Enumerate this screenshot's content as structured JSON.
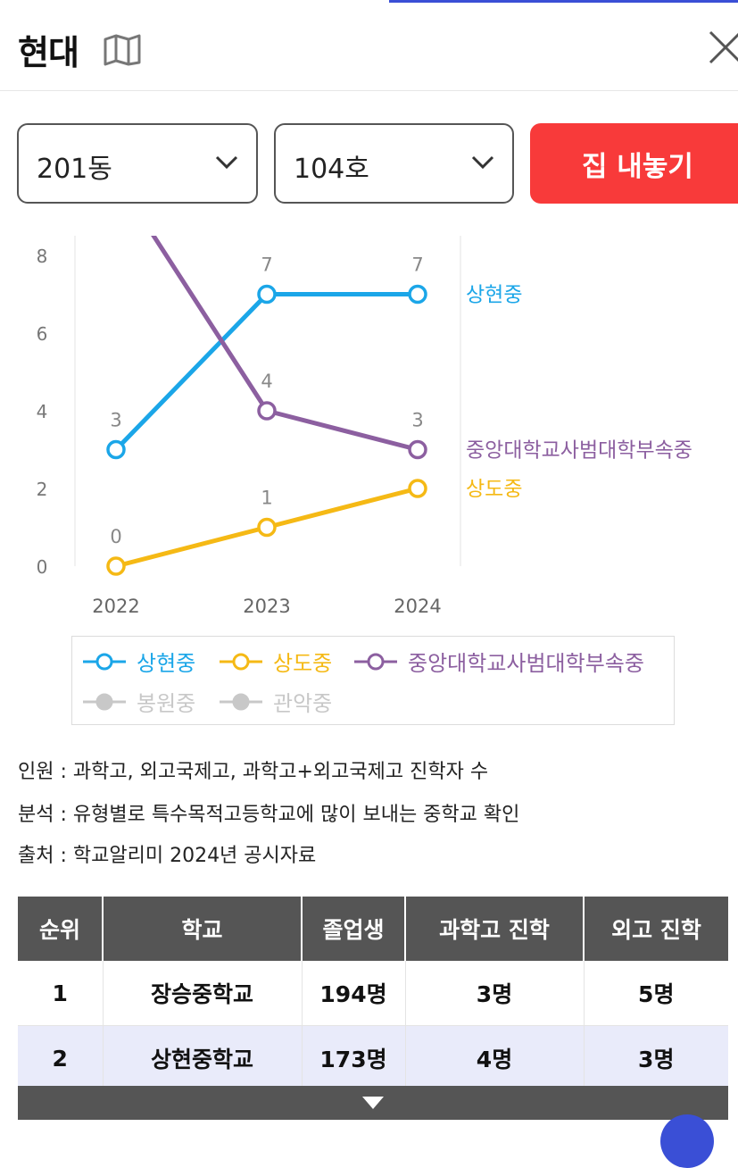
{
  "header": {
    "title": "현대"
  },
  "selectors": {
    "dong": "201동",
    "ho": "104호"
  },
  "actions": {
    "list_button": "집 내놓기"
  },
  "chart_data": {
    "type": "line",
    "x": [
      2022,
      2023,
      2024
    ],
    "ylim": [
      0,
      8
    ],
    "yticks": [
      0,
      2,
      4,
      6,
      8
    ],
    "series": [
      {
        "name": "상현중",
        "color": "#1ba6e8",
        "values": [
          3,
          7,
          7
        ],
        "labels": [
          "3",
          "7",
          "7"
        ]
      },
      {
        "name": "상도중",
        "color": "#f5b915",
        "values": [
          0,
          1,
          2
        ],
        "labels": [
          "0",
          "1",
          ""
        ]
      },
      {
        "name": "중앙대학교사범대학부속중",
        "color": "#8c5fa0",
        "values": [
          10,
          4,
          3
        ],
        "labels": [
          "",
          "4",
          "3"
        ]
      }
    ]
  },
  "legend": {
    "items": [
      {
        "name": "상현중",
        "color": "#1ba6e8",
        "active": true
      },
      {
        "name": "상도중",
        "color": "#f5b915",
        "active": true
      },
      {
        "name": "중앙대학교사범대학부속중",
        "color": "#8c5fa0",
        "active": true
      },
      {
        "name": "봉원중",
        "color": "#c8c8c8",
        "active": false
      },
      {
        "name": "관악중",
        "color": "#c8c8c8",
        "active": false
      }
    ]
  },
  "notes": {
    "personnel": "인원 : 과학고, 외고국제고, 과학고+외고국제고 진학자 수",
    "analysis": "분석 : 유형별로 특수목적고등학교에 많이 보내는 중학교 확인",
    "source": "출처 : 학교알리미 2024년 공시자료"
  },
  "table": {
    "headers": [
      "순위",
      "학교",
      "졸업생",
      "과학고 진학",
      "외고 진학"
    ],
    "rows": [
      [
        "1",
        "장승중학교",
        "194명",
        "3명",
        "5명"
      ],
      [
        "2",
        "상현중학교",
        "173명",
        "4명",
        "3명"
      ]
    ]
  },
  "colors": {
    "accent_red": "#f83a3a",
    "table_header": "#555555",
    "row_highlight": "#e9ebfa"
  }
}
